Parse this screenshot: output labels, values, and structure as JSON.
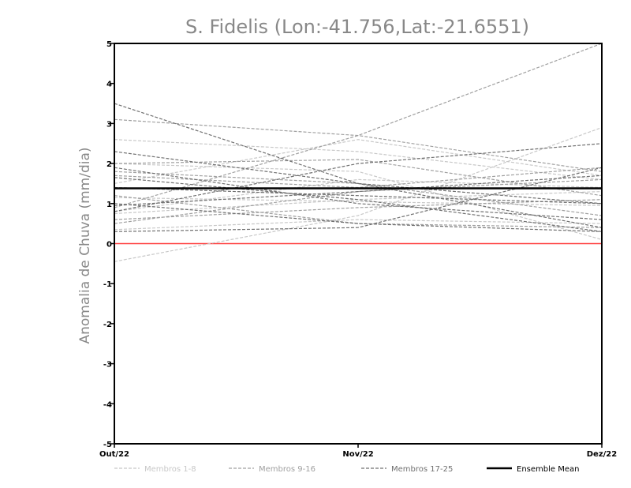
{
  "chart_data": {
    "type": "line",
    "title": "S. Fidelis (Lon:-41.756,Lat:-21.6551)",
    "ylabel": "Anomalia de Chuva (mm/dia)",
    "xlabel": "",
    "categories": [
      "Out/22",
      "Nov/22",
      "Dez/22"
    ],
    "ylim": [
      -5,
      5
    ],
    "yticks": [
      -5,
      -4,
      -3,
      -2,
      -1,
      0,
      1,
      2,
      3,
      4,
      5
    ],
    "grid": false,
    "legend_position": "bottom",
    "zero_line_color": "#ff4040",
    "groups": [
      {
        "name": "Membros 1-8",
        "color": "#c8c8c8",
        "series": [
          [
            -0.45,
            0.7,
            2.9
          ],
          [
            2.6,
            2.3,
            1.6
          ],
          [
            1.5,
            2.6,
            1.7
          ],
          [
            0.75,
            1.1,
            1.3
          ],
          [
            2.0,
            1.8,
            0.1
          ],
          [
            0.35,
            0.6,
            0.5
          ],
          [
            0.8,
            1.6,
            1.4
          ],
          [
            1.15,
            1.05,
            0.95
          ]
        ]
      },
      {
        "name": "Membros 9-16",
        "color": "#a0a0a0",
        "series": [
          [
            0.9,
            2.7,
            5.0
          ],
          [
            3.1,
            2.7,
            1.8
          ],
          [
            1.7,
            1.4,
            1.9
          ],
          [
            0.6,
            0.9,
            1.1
          ],
          [
            2.0,
            2.1,
            1.2
          ],
          [
            1.2,
            0.5,
            0.4
          ],
          [
            0.5,
            1.3,
            1.6
          ],
          [
            1.8,
            1.5,
            0.7
          ]
        ]
      },
      {
        "name": "Membros 17-25",
        "color": "#707070",
        "series": [
          [
            3.5,
            1.5,
            0.4
          ],
          [
            2.3,
            1.5,
            1.0
          ],
          [
            1.9,
            1.0,
            0.6
          ],
          [
            1.65,
            1.1,
            0.3
          ],
          [
            0.95,
            1.3,
            1.7
          ],
          [
            1.0,
            0.5,
            0.3
          ],
          [
            0.8,
            2.0,
            2.5
          ],
          [
            0.3,
            0.4,
            1.9
          ],
          [
            1.4,
            1.2,
            1.0
          ]
        ]
      }
    ],
    "ensemble_mean": {
      "name": "Ensemble Mean",
      "color": "#000000",
      "values": [
        1.38,
        1.38,
        1.38
      ]
    }
  }
}
